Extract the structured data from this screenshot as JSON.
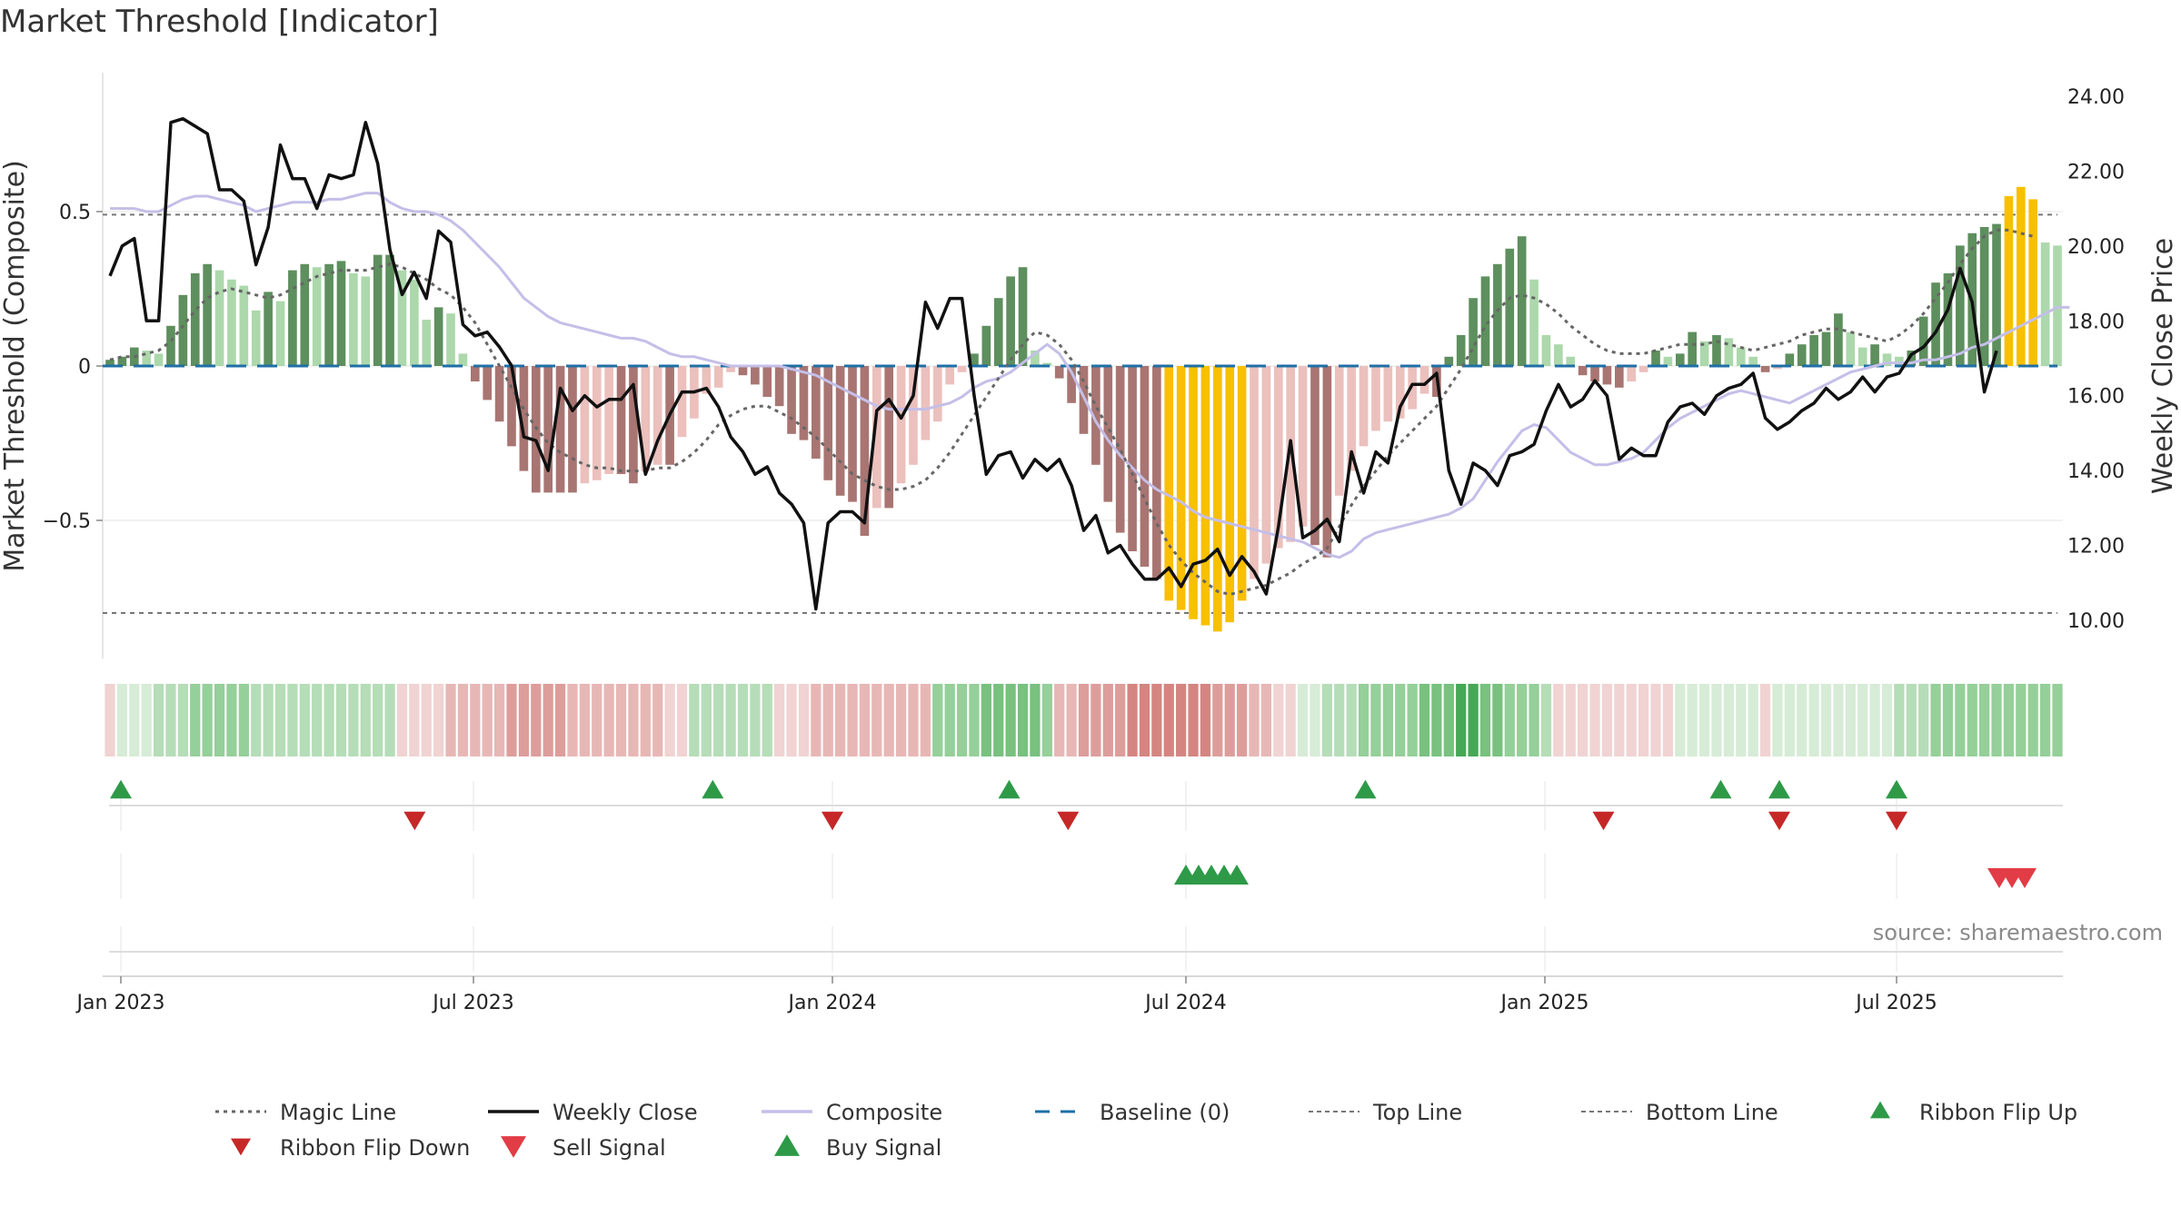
{
  "title": "Market Threshold [Indicator]",
  "source": "source: sharemaestro.com",
  "colors": {
    "magic_line": "#666666",
    "weekly_close": "#111111",
    "composite": "#c4bfe8",
    "baseline": "#1f6fa6",
    "threshold": "#777777",
    "bull_strong": "#5e8f5e",
    "bull_weak": "#acd8ac",
    "bear_strong": "#a87572",
    "bear_weak": "#ebc0bd",
    "extreme": "#f7c000",
    "flip_up": "#2e9a48",
    "flip_down": "#c62828",
    "sell": "#e23c46",
    "buy": "#2e9a48"
  },
  "chart_data": {
    "type": "bar",
    "x_axis": {
      "ticks": [
        "Jan 2023",
        "Jul 2023",
        "Jan 2024",
        "Jul 2024",
        "Jan 2025",
        "Jul 2025"
      ]
    },
    "left_axis": {
      "label": "Market Threshold (Composite)",
      "ticks": [
        "0.5",
        "0",
        "−0.5"
      ],
      "range": [
        -0.95,
        0.95
      ]
    },
    "right_axis": {
      "label": "Weekly Close Price",
      "ticks": [
        "24.00",
        "22.00",
        "20.00",
        "18.00",
        "16.00",
        "14.00",
        "12.00",
        "10.00"
      ],
      "range": [
        9.0,
        24.0
      ]
    },
    "top_line": 0.49,
    "bottom_line": -0.8,
    "composite_bars": [
      0.02,
      0.03,
      0.06,
      0.05,
      0.04,
      0.13,
      0.23,
      0.3,
      0.33,
      0.31,
      0.28,
      0.26,
      0.18,
      0.24,
      0.21,
      0.31,
      0.33,
      0.32,
      0.33,
      0.34,
      0.3,
      0.29,
      0.36,
      0.36,
      0.31,
      0.28,
      0.15,
      0.19,
      0.17,
      0.04,
      -0.05,
      -0.11,
      -0.18,
      -0.26,
      -0.34,
      -0.41,
      -0.41,
      -0.41,
      -0.41,
      -0.38,
      -0.37,
      -0.35,
      -0.35,
      -0.38,
      -0.34,
      -0.32,
      -0.32,
      -0.23,
      -0.17,
      -0.09,
      -0.07,
      -0.02,
      -0.03,
      -0.06,
      -0.1,
      -0.13,
      -0.22,
      -0.24,
      -0.3,
      -0.37,
      -0.42,
      -0.44,
      -0.55,
      -0.46,
      -0.46,
      -0.38,
      -0.32,
      -0.24,
      -0.18,
      -0.06,
      -0.02,
      0.04,
      0.13,
      0.22,
      0.29,
      0.32,
      0.05,
      0.01,
      -0.04,
      -0.12,
      -0.22,
      -0.32,
      -0.44,
      -0.54,
      -0.6,
      -0.65,
      -0.69,
      -0.76,
      -0.79,
      -0.82,
      -0.84,
      -0.86,
      -0.83,
      -0.76,
      -0.69,
      -0.64,
      -0.59,
      -0.57,
      -0.52,
      -0.58,
      -0.62,
      -0.42,
      -0.34,
      -0.26,
      -0.21,
      -0.18,
      -0.17,
      -0.14,
      -0.09,
      -0.1,
      0.03,
      0.1,
      0.22,
      0.29,
      0.33,
      0.38,
      0.42,
      0.28,
      0.1,
      0.07,
      0.03,
      -0.03,
      -0.05,
      -0.06,
      -0.07,
      -0.05,
      -0.02,
      0.05,
      0.03,
      0.04,
      0.11,
      0.08,
      0.1,
      0.09,
      0.06,
      0.03,
      -0.02,
      -0.01,
      0.04,
      0.07,
      0.1,
      0.11,
      0.17,
      0.11,
      0.06,
      0.07,
      0.04,
      0.03,
      0.05,
      0.16,
      0.27,
      0.3,
      0.39,
      0.43,
      0.45,
      0.46,
      0.55,
      0.58,
      0.54,
      0.4,
      0.39
    ],
    "composite_line": [
      0.51,
      0.51,
      0.51,
      0.5,
      0.5,
      0.52,
      0.54,
      0.55,
      0.55,
      0.54,
      0.53,
      0.52,
      0.5,
      0.51,
      0.52,
      0.53,
      0.53,
      0.53,
      0.54,
      0.54,
      0.55,
      0.56,
      0.56,
      0.53,
      0.51,
      0.5,
      0.5,
      0.49,
      0.47,
      0.44,
      0.4,
      0.36,
      0.32,
      0.27,
      0.22,
      0.19,
      0.16,
      0.14,
      0.13,
      0.12,
      0.11,
      0.1,
      0.09,
      0.09,
      0.08,
      0.06,
      0.04,
      0.03,
      0.03,
      0.02,
      0.01,
      0.0,
      0.0,
      0.0,
      0.0,
      0.0,
      -0.01,
      -0.02,
      -0.03,
      -0.05,
      -0.07,
      -0.09,
      -0.11,
      -0.13,
      -0.14,
      -0.14,
      -0.14,
      -0.14,
      -0.13,
      -0.12,
      -0.1,
      -0.07,
      -0.05,
      -0.04,
      -0.02,
      0.01,
      0.04,
      0.07,
      0.04,
      -0.02,
      -0.1,
      -0.18,
      -0.24,
      -0.29,
      -0.33,
      -0.37,
      -0.4,
      -0.42,
      -0.44,
      -0.47,
      -0.49,
      -0.5,
      -0.51,
      -0.52,
      -0.53,
      -0.54,
      -0.55,
      -0.56,
      -0.57,
      -0.59,
      -0.61,
      -0.62,
      -0.6,
      -0.56,
      -0.54,
      -0.53,
      -0.52,
      -0.51,
      -0.5,
      -0.49,
      -0.48,
      -0.46,
      -0.43,
      -0.37,
      -0.31,
      -0.26,
      -0.21,
      -0.19,
      -0.2,
      -0.24,
      -0.28,
      -0.3,
      -0.32,
      -0.32,
      -0.31,
      -0.3,
      -0.28,
      -0.24,
      -0.2,
      -0.17,
      -0.15,
      -0.13,
      -0.11,
      -0.09,
      -0.08,
      -0.09,
      -0.1,
      -0.11,
      -0.12,
      -0.1,
      -0.08,
      -0.06,
      -0.04,
      -0.02,
      -0.01,
      0.0,
      0.01,
      0.01,
      0.01,
      0.02,
      0.02,
      0.03,
      0.04,
      0.06,
      0.07,
      0.09,
      0.11,
      0.13,
      0.15,
      0.17,
      0.19,
      0.19
    ],
    "magic_line": [
      0.02,
      0.03,
      0.03,
      0.04,
      0.05,
      0.08,
      0.13,
      0.18,
      0.22,
      0.24,
      0.25,
      0.24,
      0.23,
      0.22,
      0.23,
      0.25,
      0.27,
      0.29,
      0.3,
      0.31,
      0.31,
      0.31,
      0.32,
      0.33,
      0.32,
      0.3,
      0.28,
      0.25,
      0.23,
      0.19,
      0.14,
      0.07,
      0.0,
      -0.07,
      -0.14,
      -0.2,
      -0.25,
      -0.28,
      -0.3,
      -0.32,
      -0.33,
      -0.33,
      -0.34,
      -0.34,
      -0.34,
      -0.33,
      -0.33,
      -0.31,
      -0.28,
      -0.24,
      -0.19,
      -0.16,
      -0.14,
      -0.13,
      -0.13,
      -0.15,
      -0.17,
      -0.2,
      -0.23,
      -0.27,
      -0.31,
      -0.35,
      -0.37,
      -0.39,
      -0.4,
      -0.4,
      -0.39,
      -0.37,
      -0.33,
      -0.28,
      -0.22,
      -0.16,
      -0.1,
      -0.04,
      0.02,
      0.07,
      0.11,
      0.1,
      0.07,
      0.02,
      -0.05,
      -0.13,
      -0.2,
      -0.27,
      -0.35,
      -0.43,
      -0.51,
      -0.58,
      -0.63,
      -0.67,
      -0.7,
      -0.73,
      -0.74,
      -0.73,
      -0.72,
      -0.71,
      -0.69,
      -0.67,
      -0.64,
      -0.62,
      -0.59,
      -0.52,
      -0.45,
      -0.39,
      -0.34,
      -0.29,
      -0.25,
      -0.21,
      -0.17,
      -0.13,
      -0.07,
      -0.01,
      0.06,
      0.13,
      0.18,
      0.22,
      0.23,
      0.22,
      0.2,
      0.17,
      0.13,
      0.1,
      0.07,
      0.05,
      0.04,
      0.04,
      0.04,
      0.05,
      0.06,
      0.07,
      0.07,
      0.07,
      0.08,
      0.07,
      0.06,
      0.05,
      0.06,
      0.07,
      0.08,
      0.1,
      0.11,
      0.12,
      0.12,
      0.11,
      0.1,
      0.09,
      0.08,
      0.1,
      0.13,
      0.17,
      0.22,
      0.27,
      0.33,
      0.38,
      0.42,
      0.44,
      0.44,
      0.43,
      0.42
    ],
    "weekly_close": [
      19.2,
      20.0,
      20.2,
      18.0,
      18.0,
      23.3,
      23.4,
      23.2,
      23.0,
      21.5,
      21.5,
      21.2,
      19.5,
      20.5,
      22.7,
      21.8,
      21.8,
      21.0,
      21.9,
      21.8,
      21.9,
      23.3,
      22.2,
      19.9,
      18.7,
      19.3,
      18.6,
      20.4,
      20.1,
      17.9,
      17.6,
      17.7,
      17.3,
      16.8,
      14.9,
      14.8,
      14.0,
      16.2,
      15.6,
      16.0,
      15.7,
      15.9,
      15.9,
      16.3,
      13.9,
      14.8,
      15.5,
      16.1,
      16.1,
      16.2,
      15.7,
      14.9,
      14.5,
      13.9,
      14.1,
      13.4,
      13.1,
      12.6,
      10.3,
      12.6,
      12.9,
      12.9,
      12.6,
      15.6,
      15.9,
      15.4,
      16.0,
      18.5,
      17.8,
      18.6,
      18.6,
      16.0,
      13.9,
      14.4,
      14.5,
      13.8,
      14.3,
      14.0,
      14.3,
      13.6,
      12.4,
      12.8,
      11.8,
      12.0,
      11.5,
      11.1,
      11.1,
      11.4,
      10.9,
      11.5,
      11.6,
      11.9,
      11.2,
      11.7,
      11.3,
      10.7,
      12.5,
      14.8,
      12.2,
      12.4,
      12.7,
      12.1,
      14.5,
      13.4,
      14.5,
      14.2,
      15.7,
      16.3,
      16.3,
      16.6,
      14.0,
      13.1,
      14.2,
      14.0,
      13.6,
      14.4,
      14.5,
      14.7,
      15.6,
      16.3,
      15.7,
      15.9,
      16.4,
      16.0,
      14.3,
      14.6,
      14.4,
      14.4,
      15.3,
      15.7,
      15.8,
      15.5,
      16.0,
      16.2,
      16.3,
      16.6,
      15.4,
      15.1,
      15.3,
      15.6,
      15.8,
      16.2,
      15.9,
      16.1,
      16.5,
      16.1,
      16.5,
      16.6,
      17.1,
      17.3,
      17.7,
      18.3,
      19.4,
      18.5,
      16.1,
      17.2
    ],
    "ribbon_levels": [
      -1,
      1,
      1,
      1,
      2,
      2,
      2,
      3,
      3,
      3,
      3,
      3,
      2,
      2,
      2,
      2,
      2,
      2,
      2,
      2,
      2,
      2,
      2,
      2,
      -1,
      -1,
      -1,
      -1,
      -2,
      -2,
      -2,
      -2,
      -2,
      -3,
      -3,
      -3,
      -3,
      -3,
      -2,
      -2,
      -2,
      -2,
      -2,
      -2,
      -2,
      -2,
      -1,
      -1,
      2,
      2,
      2,
      2,
      2,
      2,
      2,
      -1,
      -1,
      -1,
      -2,
      -2,
      -2,
      -2,
      -2,
      -2,
      -2,
      -2,
      -2,
      -2,
      3,
      3,
      3,
      3,
      4,
      4,
      4,
      4,
      4,
      3,
      -2,
      -2,
      -3,
      -3,
      -3,
      -3,
      -4,
      -4,
      -4,
      -4,
      -4,
      -4,
      -4,
      -3,
      -3,
      -3,
      -2,
      -2,
      -1,
      -1,
      1,
      1,
      2,
      2,
      2,
      3,
      3,
      3,
      3,
      3,
      4,
      4,
      4,
      5,
      5,
      4,
      4,
      3,
      3,
      3,
      2,
      -1,
      -1,
      -1,
      -1,
      -1,
      -1,
      -1,
      -1,
      -1,
      -1,
      1,
      1,
      1,
      1,
      1,
      1,
      1,
      -1,
      1,
      1,
      1,
      1,
      1,
      1,
      1,
      1,
      1,
      1,
      2,
      2,
      2,
      3,
      3,
      3,
      3,
      3,
      3,
      3,
      3,
      3,
      3,
      3
    ],
    "ribbon_flip_up": [
      "Jan 2023",
      "Nov 2023",
      "Apr 2024",
      "Oct 2024",
      "Apr 2025",
      "May 2025",
      "Jul 2025"
    ],
    "ribbon_flip_down": [
      "Jun 2023",
      "Jan 2024",
      "May 2024",
      "Feb 2025",
      "May 2025",
      "Jul 2025"
    ],
    "buy_signals": [
      "Jul 2024",
      "Jul 2024",
      "Jul 2024",
      "Jul 2024",
      "Jul 2024"
    ],
    "sell_signals": [
      "Sep 2025",
      "Sep 2025",
      "Sep 2025"
    ],
    "legend": [
      "Magic Line",
      "Weekly Close",
      "Composite",
      "Baseline (0)",
      "Top Line",
      "Bottom Line",
      "Ribbon Flip Up",
      "Ribbon Flip Down",
      "Sell Signal",
      "Buy Signal"
    ]
  }
}
